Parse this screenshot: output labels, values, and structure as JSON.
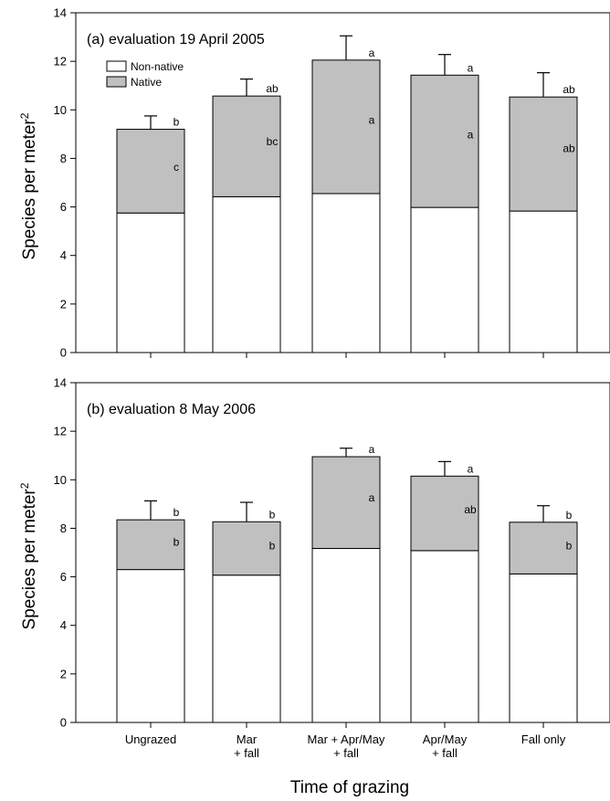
{
  "chart_data": [
    {
      "type": "bar",
      "stacked": true,
      "title": "(a)  evaluation 19 April 2005",
      "ylabel": "Species per meter",
      "ylabel_sup": "2",
      "ylim": [
        0,
        14
      ],
      "yticks": [
        "0",
        "2",
        "4",
        "6",
        "8",
        "10",
        "12",
        "14"
      ],
      "categories": [
        [
          "Ungrazed"
        ],
        [
          "Mar",
          "+ fall"
        ],
        [
          "Mar + Apr/May",
          "+ fall"
        ],
        [
          "Apr/May",
          "+ fall"
        ],
        [
          "Fall only"
        ]
      ],
      "series": [
        {
          "name": "Non-native",
          "color": "#ffffff",
          "values": [
            5.75,
            6.42,
            6.55,
            5.98,
            5.83
          ]
        },
        {
          "name": "Native",
          "color": "#c0c0c0",
          "values": [
            3.45,
            4.15,
            5.5,
            5.45,
            4.7
          ]
        }
      ],
      "error_top": [
        0.55,
        0.7,
        1.0,
        0.85,
        1.0
      ],
      "letters_total": [
        "b",
        "ab",
        "a",
        "a",
        "ab"
      ],
      "letters_native": [
        "c",
        "bc",
        "a",
        "a",
        "ab"
      ],
      "legend": "top-left"
    },
    {
      "type": "bar",
      "stacked": true,
      "title": "(b)  evaluation 8 May 2006",
      "ylabel": "Species per meter",
      "ylabel_sup": "2",
      "ylim": [
        0,
        14
      ],
      "yticks": [
        "0",
        "2",
        "4",
        "6",
        "8",
        "10",
        "12",
        "14"
      ],
      "categories": [
        [
          "Ungrazed"
        ],
        [
          "Mar",
          "+ fall"
        ],
        [
          "Mar + Apr/May",
          "+ fall"
        ],
        [
          "Apr/May",
          "+ fall"
        ],
        [
          "Fall only"
        ]
      ],
      "series": [
        {
          "name": "Non-native",
          "color": "#ffffff",
          "values": [
            6.3,
            6.07,
            7.17,
            7.08,
            6.12
          ]
        },
        {
          "name": "Native",
          "color": "#c0c0c0",
          "values": [
            2.05,
            2.2,
            3.78,
            3.07,
            2.13
          ]
        }
      ],
      "error_top": [
        0.78,
        0.8,
        0.35,
        0.6,
        0.68
      ],
      "letters_total": [
        "b",
        "b",
        "a",
        "a",
        "b"
      ],
      "letters_native": [
        "b",
        "b",
        "a",
        "ab",
        "b"
      ]
    }
  ],
  "xlabel": "Time of grazing"
}
